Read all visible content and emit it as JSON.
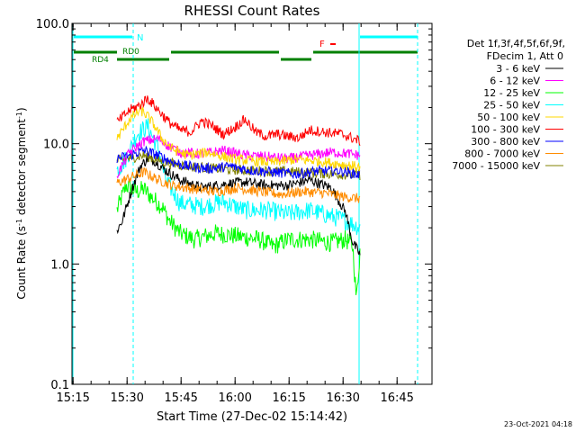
{
  "chart_data": {
    "type": "line",
    "title": "RHESSI Count Rates",
    "xlabel": "Start Time (27-Dec-02 15:14:42)",
    "ylabel_parts": {
      "main": "Count Rate (s",
      "sup1": "-1",
      "mid": " detector segment",
      "sup2": "-1",
      "end": ")"
    },
    "x_unit": "minutes after 15:14:42",
    "xlim": [
      0,
      100
    ],
    "ylim": [
      0.1,
      100
    ],
    "yscale": "log",
    "x_ticks": [
      {
        "pos": 0.3,
        "label": "15:15"
      },
      {
        "pos": 15.3,
        "label": "15:30"
      },
      {
        "pos": 30.3,
        "label": "15:45"
      },
      {
        "pos": 45.3,
        "label": "16:00"
      },
      {
        "pos": 60.3,
        "label": "16:15"
      },
      {
        "pos": 75.3,
        "label": "16:30"
      },
      {
        "pos": 90.3,
        "label": "16:45"
      }
    ],
    "y_ticks": [
      {
        "value": 0.1,
        "label": "0.1"
      },
      {
        "value": 1.0,
        "label": "1.0"
      },
      {
        "value": 10.0,
        "label": "10.0"
      },
      {
        "value": 100.0,
        "label": "100.0"
      }
    ],
    "legend": {
      "header": [
        "Det 1f,3f,4f,5f,6f,9f,",
        "FDecim 1, Att 0"
      ],
      "placement": "right"
    },
    "series": [
      {
        "name": "3 - 6 keV",
        "color": "#000000",
        "x": [
          12.5,
          14,
          15,
          17,
          19,
          21,
          23,
          26,
          30,
          36,
          42,
          48,
          54,
          60,
          66,
          72,
          76,
          78,
          80
        ],
        "y": [
          1.9,
          2.3,
          2.9,
          4.5,
          6.5,
          7.5,
          7.2,
          6.0,
          5.0,
          4.3,
          4.6,
          4.8,
          4.5,
          4.5,
          5.0,
          4.3,
          2.7,
          1.5,
          1.2
        ]
      },
      {
        "name": "6 - 12 keV",
        "color": "#ff00ff",
        "x": [
          12.5,
          16,
          20,
          24,
          27,
          30,
          36,
          42,
          48,
          54,
          60,
          66,
          72,
          76,
          80
        ],
        "y": [
          5.5,
          8.5,
          10.5,
          11.0,
          9.5,
          8.5,
          8.2,
          8.8,
          8.0,
          7.8,
          7.5,
          8.0,
          8.5,
          8.3,
          8.0
        ]
      },
      {
        "name": "12 - 25 keV",
        "color": "#00ff00",
        "x": [
          12.5,
          15,
          18,
          20,
          22,
          25,
          27,
          30,
          34,
          40,
          46,
          52,
          56,
          60,
          66,
          72,
          76,
          78,
          79,
          80
        ],
        "y": [
          2.8,
          4.5,
          4.0,
          4.2,
          3.6,
          3.0,
          2.3,
          1.8,
          1.6,
          1.8,
          1.7,
          1.6,
          1.4,
          1.6,
          1.6,
          1.5,
          1.6,
          1.4,
          0.5,
          1.3
        ]
      },
      {
        "name": "25 - 50 keV",
        "color": "#00ffff",
        "x": [
          12.5,
          15,
          18,
          21,
          24,
          26,
          30,
          36,
          42,
          48,
          54,
          60,
          66,
          72,
          76,
          80
        ],
        "y": [
          6.0,
          7.5,
          12.0,
          14.0,
          9.0,
          5.0,
          3.2,
          3.0,
          3.3,
          2.8,
          2.8,
          2.6,
          2.8,
          2.5,
          2.3,
          2.0
        ]
      },
      {
        "name": "50 - 100 keV",
        "color": "#ffd700",
        "x": [
          12.5,
          16,
          19,
          21,
          23,
          25,
          28,
          32,
          38,
          44,
          50,
          56,
          62,
          68,
          74,
          80
        ],
        "y": [
          11.0,
          16.0,
          19.0,
          17.0,
          14.0,
          11.0,
          9.0,
          8.0,
          8.5,
          7.5,
          7.2,
          7.0,
          7.4,
          7.2,
          6.8,
          6.4
        ]
      },
      {
        "name": "100 - 300 keV",
        "color": "#ff0000",
        "x": [
          12.5,
          16,
          19,
          21,
          24,
          27,
          30,
          33,
          36,
          39,
          42,
          45,
          48,
          51,
          54,
          57,
          60,
          63,
          66,
          70,
          75,
          80
        ],
        "y": [
          15.0,
          19.0,
          21.0,
          24.0,
          19.0,
          15.0,
          13.0,
          12.5,
          15.5,
          14.0,
          12.0,
          13.5,
          16.0,
          12.5,
          11.5,
          12.0,
          11.5,
          11.2,
          13.0,
          12.5,
          12.0,
          10.5
        ]
      },
      {
        "name": "300 - 800 keV",
        "color": "#0000ff",
        "x": [
          12.5,
          16,
          20,
          24,
          28,
          32,
          38,
          44,
          50,
          56,
          62,
          68,
          74,
          80
        ],
        "y": [
          7.5,
          8.0,
          8.8,
          8.0,
          7.0,
          6.5,
          6.2,
          6.5,
          6.0,
          5.8,
          5.6,
          5.9,
          6.0,
          5.5
        ]
      },
      {
        "name": "800 - 7000 keV",
        "color": "#ff8c00",
        "x": [
          12.5,
          16,
          20,
          24,
          28,
          34,
          40,
          46,
          52,
          58,
          64,
          70,
          76,
          80
        ],
        "y": [
          4.7,
          5.2,
          5.8,
          5.0,
          4.5,
          4.2,
          4.0,
          4.3,
          4.0,
          3.8,
          4.0,
          3.9,
          3.6,
          3.5
        ]
      },
      {
        "name": "7000 - 15000 keV",
        "color": "#808000",
        "x": [
          12.5,
          16,
          20,
          26,
          32,
          40,
          48,
          56,
          64,
          72,
          80
        ],
        "y": [
          7.2,
          7.6,
          8.0,
          7.0,
          6.5,
          6.2,
          6.0,
          5.9,
          5.8,
          5.6,
          5.5
        ]
      }
    ],
    "annotations": {
      "markers": [
        {
          "label": "N",
          "color": "#00ffff"
        },
        {
          "label": "RD0",
          "color": "#008000"
        },
        {
          "label": "RD4",
          "color": "#008000"
        },
        {
          "label": "F",
          "color": "#ff0000"
        }
      ]
    },
    "footer_date": "23-Oct-2021 04:18"
  }
}
